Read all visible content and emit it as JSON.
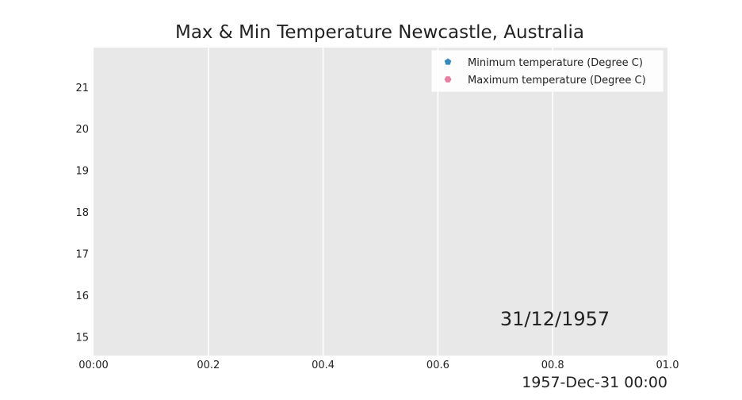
{
  "chart_data": {
    "type": "scatter",
    "title": "Max & Min Temperature Newcastle, Australia",
    "xlabel": "1957-Dec-31 00:00",
    "ylabel": "",
    "xlim": [
      0.0,
      1.0
    ],
    "ylim": [
      14.55,
      21.95
    ],
    "x_tick_labels": [
      "00:00",
      "00.2",
      "00.4",
      "00.6",
      "00.8",
      "01.0"
    ],
    "y_ticks": [
      15,
      16,
      17,
      18,
      19,
      20,
      21
    ],
    "grid": true,
    "legend_position": "top-right",
    "annotation": "31/12/1957",
    "series": [
      {
        "name": "Minimum temperature (Degree C)",
        "color": "#348abd",
        "marker": "pentagon",
        "values": []
      },
      {
        "name": "Maximum temperature (Degree C)",
        "color": "#e57fa3",
        "marker": "hexagon",
        "values": []
      }
    ],
    "colors": {
      "plot_background": "#e8e8e8",
      "grid": "#ffffff",
      "text": "#222222"
    }
  }
}
